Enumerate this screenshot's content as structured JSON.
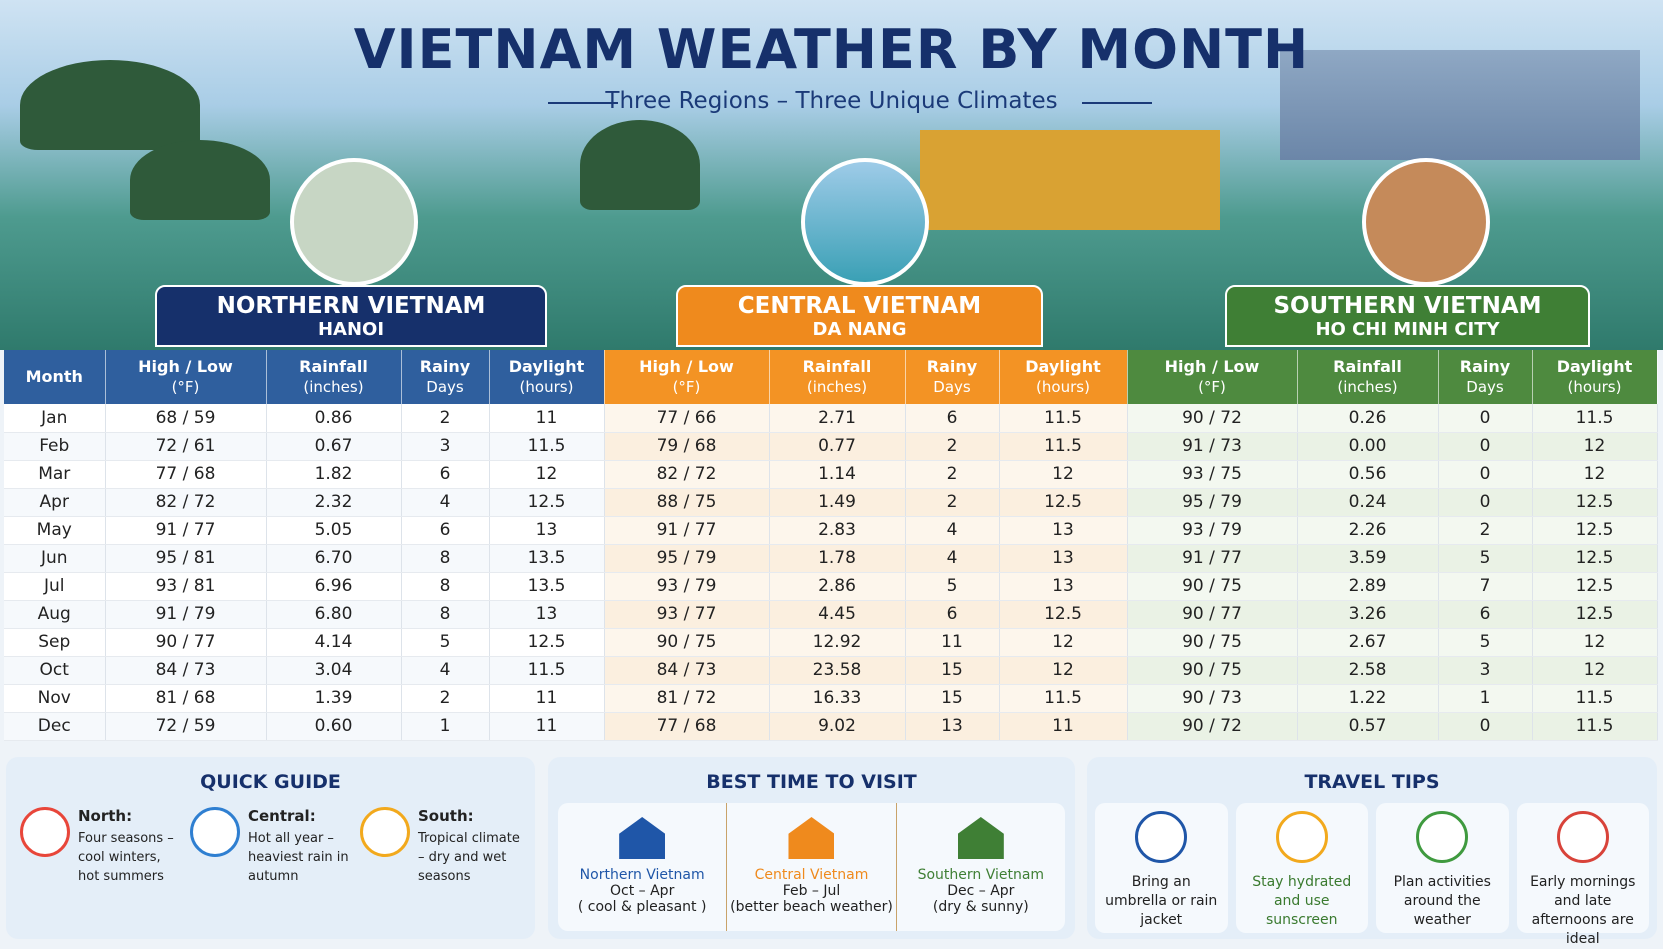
{
  "header": {
    "title": "VIETNAM WEATHER BY MONTH",
    "subtitle": "Three Regions – Three Unique Climates"
  },
  "regions": [
    {
      "name": "NORTHERN VIETNAM",
      "city": "HANOI"
    },
    {
      "name": "CENTRAL VIETNAM",
      "city": "DA NANG"
    },
    {
      "name": "SOUTHERN VIETNAM",
      "city": "HO CHI MINH CITY"
    }
  ],
  "table": {
    "month_header": "Month",
    "columns": [
      [
        "High / Low",
        "(°F)"
      ],
      [
        "Rainfall",
        "(inches)"
      ],
      [
        "Rainy",
        "Days"
      ],
      [
        "Daylight",
        "(hours)"
      ]
    ],
    "rows": [
      [
        "Jan",
        "68 / 59",
        "0.86",
        "2",
        "11",
        "77 / 66",
        "2.71",
        "6",
        "11.5",
        "90 / 72",
        "0.26",
        "0",
        "11.5"
      ],
      [
        "Feb",
        "72 / 61",
        "0.67",
        "3",
        "11.5",
        "79 / 68",
        "0.77",
        "2",
        "11.5",
        "91 / 73",
        "0.00",
        "0",
        "12"
      ],
      [
        "Mar",
        "77 / 68",
        "1.82",
        "6",
        "12",
        "82 / 72",
        "1.14",
        "2",
        "12",
        "93 / 75",
        "0.56",
        "0",
        "12"
      ],
      [
        "Apr",
        "82 / 72",
        "2.32",
        "4",
        "12.5",
        "88 / 75",
        "1.49",
        "2",
        "12.5",
        "95 / 79",
        "0.24",
        "0",
        "12.5"
      ],
      [
        "May",
        "91 / 77",
        "5.05",
        "6",
        "13",
        "91 / 77",
        "2.83",
        "4",
        "13",
        "93 / 79",
        "2.26",
        "2",
        "12.5"
      ],
      [
        "Jun",
        "95 / 81",
        "6.70",
        "8",
        "13.5",
        "95 / 79",
        "1.78",
        "4",
        "13",
        "91 / 77",
        "3.59",
        "5",
        "12.5"
      ],
      [
        "Jul",
        "93 / 81",
        "6.96",
        "8",
        "13.5",
        "93 / 79",
        "2.86",
        "5",
        "13",
        "90 / 75",
        "2.89",
        "7",
        "12.5"
      ],
      [
        "Aug",
        "91 / 79",
        "6.80",
        "8",
        "13",
        "93 / 77",
        "4.45",
        "6",
        "12.5",
        "90 / 77",
        "3.26",
        "6",
        "12.5"
      ],
      [
        "Sep",
        "90 / 77",
        "4.14",
        "5",
        "12.5",
        "90 / 75",
        "12.92",
        "11",
        "12",
        "90 / 75",
        "2.67",
        "5",
        "12"
      ],
      [
        "Oct",
        "84 / 73",
        "3.04",
        "4",
        "11.5",
        "84 / 73",
        "23.58",
        "15",
        "12",
        "90 / 75",
        "2.58",
        "3",
        "12"
      ],
      [
        "Nov",
        "81 / 68",
        "1.39",
        "2",
        "11",
        "81 / 72",
        "16.33",
        "15",
        "11.5",
        "90 / 73",
        "1.22",
        "1",
        "11.5"
      ],
      [
        "Dec",
        "72 / 59",
        "0.60",
        "1",
        "11",
        "77 / 68",
        "9.02",
        "13",
        "11",
        "90 / 72",
        "0.57",
        "0",
        "11.5"
      ]
    ]
  },
  "quick_guide": {
    "title": "QUICK GUIDE",
    "items": [
      {
        "label": "North:",
        "text": "Four seasons – cool winters, hot summers"
      },
      {
        "label": "Central:",
        "text": "Hot all year – heaviest rain in autumn"
      },
      {
        "label": "South:",
        "text": "Tropical climate – dry and wet seasons"
      }
    ]
  },
  "best_time": {
    "title": "BEST TIME TO VISIT",
    "items": [
      {
        "region": "Northern Vietnam",
        "months": "Oct – Apr",
        "note": "( cool & pleasant )"
      },
      {
        "region": "Central Vietnam",
        "months": "Feb – Jul",
        "note": "(better beach weather)"
      },
      {
        "region": "Southern Vietnam",
        "months": "Dec – Apr",
        "note": "(dry & sunny)"
      }
    ]
  },
  "travel_tips": {
    "title": "TRAVEL TIPS",
    "items": [
      "Bring an umbrella or rain jacket",
      "Stay hydrated and use sunscreen",
      "Plan activities around the weather",
      "Early mornings and late afternoons are ideal"
    ]
  }
}
